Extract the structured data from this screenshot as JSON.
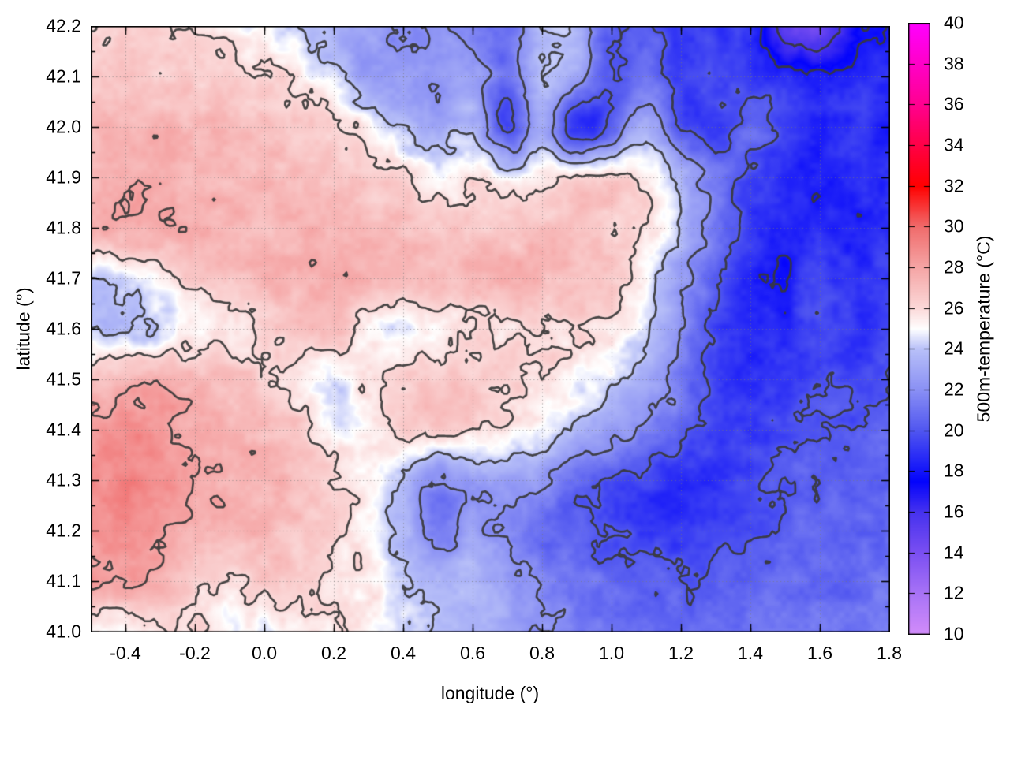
{
  "chart_data": {
    "type": "heatmap",
    "title": "",
    "xlabel": "longitude (°)",
    "ylabel": "latitude (°)",
    "colorbar_label": "500m-temperature (°C)",
    "x_range": [
      -0.5,
      1.8
    ],
    "y_range": [
      41.0,
      42.2
    ],
    "cb_range": [
      10,
      40
    ],
    "grid_on": true,
    "legend_position": "none",
    "x_tick_values": [
      -0.4,
      -0.2,
      0.0,
      0.2,
      0.4,
      0.6,
      0.8,
      1.0,
      1.2,
      1.4,
      1.6,
      1.8
    ],
    "x_tick_labels": [
      "-0.4",
      "-0.2",
      "0.0",
      "0.2",
      "0.4",
      "0.6",
      "0.8",
      "1.0",
      "1.2",
      "1.4",
      "1.6",
      "1.8"
    ],
    "x_minor_step": 0.1,
    "y_tick_values": [
      41.0,
      41.1,
      41.2,
      41.3,
      41.4,
      41.5,
      41.6,
      41.7,
      41.8,
      41.9,
      42.0,
      42.1,
      42.2
    ],
    "y_tick_labels": [
      "41.0",
      "41.1",
      "41.2",
      "41.3",
      "41.4",
      "41.5",
      "41.6",
      "41.7",
      "41.8",
      "41.9",
      "42.0",
      "42.1",
      "42.2"
    ],
    "y_minor_step": 0.05,
    "cb_tick_values": [
      10,
      12,
      14,
      16,
      18,
      20,
      22,
      24,
      26,
      28,
      30,
      32,
      34,
      36,
      38,
      40
    ],
    "cb_tick_labels": [
      "10",
      "12",
      "14",
      "16",
      "18",
      "20",
      "22",
      "24",
      "26",
      "28",
      "30",
      "32",
      "34",
      "36",
      "38",
      "40"
    ],
    "contour_levels": [
      16,
      18,
      20,
      22,
      24,
      26,
      28
    ],
    "contour_color": "#383838",
    "grid_line_color": "#787878",
    "palette_stops": [
      [
        10,
        "#d28cfa"
      ],
      [
        12,
        "#a873f6"
      ],
      [
        14,
        "#7b4ff2"
      ],
      [
        16,
        "#4632ee"
      ],
      [
        17.5,
        "#0404fc"
      ],
      [
        20,
        "#5056f0"
      ],
      [
        22,
        "#8a90f4"
      ],
      [
        24,
        "#b8c0f8"
      ],
      [
        25,
        "#ffffff"
      ],
      [
        26,
        "#fbd9d9"
      ],
      [
        28,
        "#f5a5a5"
      ],
      [
        30,
        "#f06c6c"
      ],
      [
        32,
        "#ff0000"
      ],
      [
        34,
        "#ff0046"
      ],
      [
        36,
        "#ff0090"
      ],
      [
        38,
        "#ff00c8"
      ],
      [
        40,
        "#ff00ff"
      ]
    ],
    "field": {
      "lon_start": -0.5,
      "lon_step": 0.1,
      "cols": 24,
      "lat_start": 42.2,
      "lat_step": -0.1,
      "rows": 13,
      "units": "°C",
      "values_by_lat_desc": [
        [
          26.3,
          26.2,
          26.0,
          25.8,
          25.4,
          25.0,
          24.0,
          23.2,
          22.8,
          21.6,
          22.6,
          21.4,
          21.0,
          24.0,
          23.6,
          20.2,
          20.6,
          19.4,
          19.2,
          18.8,
          15.0,
          14.4,
          17.2,
          18.4
        ],
        [
          26.8,
          26.8,
          26.7,
          26.5,
          26.3,
          26.1,
          25.5,
          24.4,
          22.6,
          22.4,
          22.2,
          22.8,
          20.8,
          24.0,
          22.6,
          19.8,
          21.2,
          19.4,
          19.8,
          19.2,
          18.4,
          18.0,
          18.8,
          18.6
        ],
        [
          27.2,
          27.3,
          27.3,
          27.2,
          27.1,
          26.9,
          26.5,
          26.2,
          25.2,
          23.8,
          23.2,
          23.6,
          19.8,
          23.0,
          18.8,
          20.4,
          23.4,
          20.2,
          19.2,
          20.8,
          19.4,
          18.6,
          19.0,
          18.2
        ],
        [
          27.5,
          27.6,
          27.6,
          27.5,
          27.4,
          27.3,
          27.1,
          26.9,
          26.5,
          26.1,
          25.3,
          25.7,
          25.1,
          25.5,
          25.9,
          26.1,
          25.8,
          23.6,
          21.2,
          19.4,
          18.8,
          18.4,
          18.8,
          18.9
        ],
        [
          27.6,
          27.8,
          27.7,
          27.5,
          27.5,
          27.3,
          27.5,
          27.3,
          27.1,
          26.9,
          26.6,
          26.8,
          26.6,
          26.8,
          26.7,
          26.5,
          25.7,
          23.6,
          21.0,
          19.2,
          18.3,
          18.6,
          18.4,
          18.8
        ],
        [
          23.9,
          24.6,
          25.5,
          26.5,
          27.0,
          27.3,
          27.5,
          27.7,
          27.5,
          27.3,
          27.0,
          27.2,
          27.4,
          27.3,
          27.0,
          26.6,
          25.0,
          22.6,
          20.4,
          18.6,
          18.2,
          19.6,
          18.8,
          19.2
        ],
        [
          24.2,
          23.8,
          24.4,
          25.2,
          25.6,
          26.2,
          26.7,
          27.1,
          25.2,
          24.7,
          25.4,
          25.8,
          26.0,
          26.2,
          26.1,
          25.5,
          24.2,
          22.0,
          19.6,
          18.4,
          18.8,
          19.8,
          19.0,
          19.6
        ],
        [
          27.0,
          27.4,
          27.8,
          27.3,
          26.8,
          26.4,
          25.6,
          24.5,
          26.0,
          26.4,
          26.6,
          26.5,
          26.3,
          26.0,
          25.2,
          24.4,
          23.2,
          21.4,
          19.4,
          18.6,
          19.2,
          19.8,
          19.4,
          20.0
        ],
        [
          28.4,
          28.8,
          28.4,
          27.8,
          27.5,
          27.2,
          26.6,
          25.0,
          25.6,
          26.4,
          26.2,
          26.0,
          25.6,
          24.8,
          23.6,
          22.6,
          21.6,
          20.6,
          19.6,
          19.2,
          19.8,
          20.2,
          20.0,
          20.4
        ],
        [
          28.8,
          29.2,
          28.6,
          28.0,
          27.6,
          27.4,
          27.0,
          26.4,
          25.4,
          24.0,
          21.8,
          22.6,
          23.0,
          22.2,
          20.8,
          20.0,
          19.4,
          18.8,
          19.0,
          19.6,
          20.2,
          20.4,
          20.2,
          20.6
        ],
        [
          28.6,
          28.9,
          28.2,
          27.8,
          27.5,
          27.2,
          26.8,
          26.2,
          25.2,
          23.6,
          21.6,
          22.6,
          21.4,
          20.6,
          20.2,
          19.8,
          19.2,
          19.0,
          19.4,
          20.0,
          20.4,
          20.6,
          20.4,
          20.8
        ],
        [
          28.0,
          28.2,
          27.8,
          26.6,
          25.8,
          26.8,
          26.4,
          26.0,
          25.6,
          24.4,
          23.4,
          23.8,
          22.8,
          21.8,
          21.2,
          20.8,
          20.4,
          20.2,
          20.4,
          20.6,
          20.8,
          20.7,
          20.6,
          21.0
        ],
        [
          24.8,
          25.0,
          25.6,
          26.0,
          25.1,
          24.7,
          25.3,
          25.7,
          25.1,
          24.5,
          24.0,
          23.5,
          22.9,
          22.0,
          21.4,
          21.0,
          20.8,
          20.6,
          20.8,
          21.0,
          21.2,
          21.0,
          20.9,
          21.2
        ]
      ]
    }
  }
}
